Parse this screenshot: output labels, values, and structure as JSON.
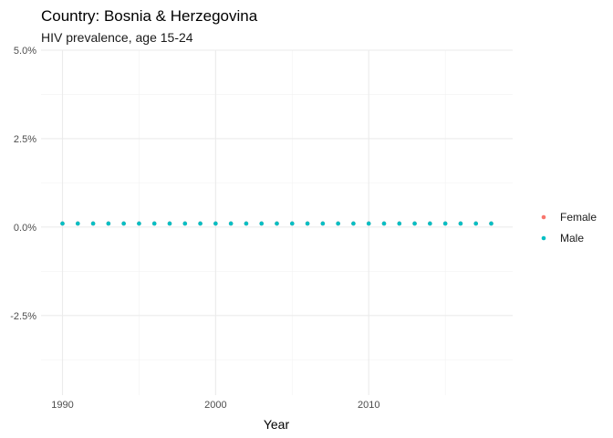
{
  "chart_data": {
    "type": "scatter",
    "title": "Country: Bosnia & Herzegovina",
    "subtitle": "HIV prevalence, age 15-24",
    "xlabel": "Year",
    "ylabel": "",
    "xlim": [
      1988.6,
      2019.4
    ],
    "ylim": [
      -0.0475,
      0.05
    ],
    "x_ticks": [
      1990,
      2000,
      2010
    ],
    "x_tick_labels": [
      "1990",
      "2000",
      "2010"
    ],
    "y_ticks": [
      0.05,
      0.025,
      0.0,
      -0.025
    ],
    "y_tick_labels": [
      "5.0%",
      "2.5%",
      "0.0%",
      "-2.5%"
    ],
    "grid": true,
    "legend_position": "right",
    "series": [
      {
        "name": "Female",
        "color": "#F8766D",
        "x": [
          1990,
          1991,
          1992,
          1993,
          1994,
          1995,
          1996,
          1997,
          1998,
          1999,
          2000,
          2001,
          2002,
          2003,
          2004,
          2005,
          2006,
          2007,
          2008,
          2009,
          2010,
          2011,
          2012,
          2013,
          2014,
          2015,
          2016,
          2017,
          2018
        ],
        "y": [
          0.001,
          0.001,
          0.001,
          0.001,
          0.001,
          0.001,
          0.001,
          0.001,
          0.001,
          0.001,
          0.001,
          0.001,
          0.001,
          0.001,
          0.001,
          0.001,
          0.001,
          0.001,
          0.001,
          0.001,
          0.001,
          0.001,
          0.001,
          0.001,
          0.001,
          0.001,
          0.001,
          0.001,
          0.001
        ]
      },
      {
        "name": "Male",
        "color": "#00BFC4",
        "x": [
          1990,
          1991,
          1992,
          1993,
          1994,
          1995,
          1996,
          1997,
          1998,
          1999,
          2000,
          2001,
          2002,
          2003,
          2004,
          2005,
          2006,
          2007,
          2008,
          2009,
          2010,
          2011,
          2012,
          2013,
          2014,
          2015,
          2016,
          2017,
          2018
        ],
        "y": [
          0.001,
          0.001,
          0.001,
          0.001,
          0.001,
          0.001,
          0.001,
          0.001,
          0.001,
          0.001,
          0.001,
          0.001,
          0.001,
          0.001,
          0.001,
          0.001,
          0.001,
          0.001,
          0.001,
          0.001,
          0.001,
          0.001,
          0.001,
          0.001,
          0.001,
          0.001,
          0.001,
          0.001,
          0.001
        ]
      }
    ]
  }
}
